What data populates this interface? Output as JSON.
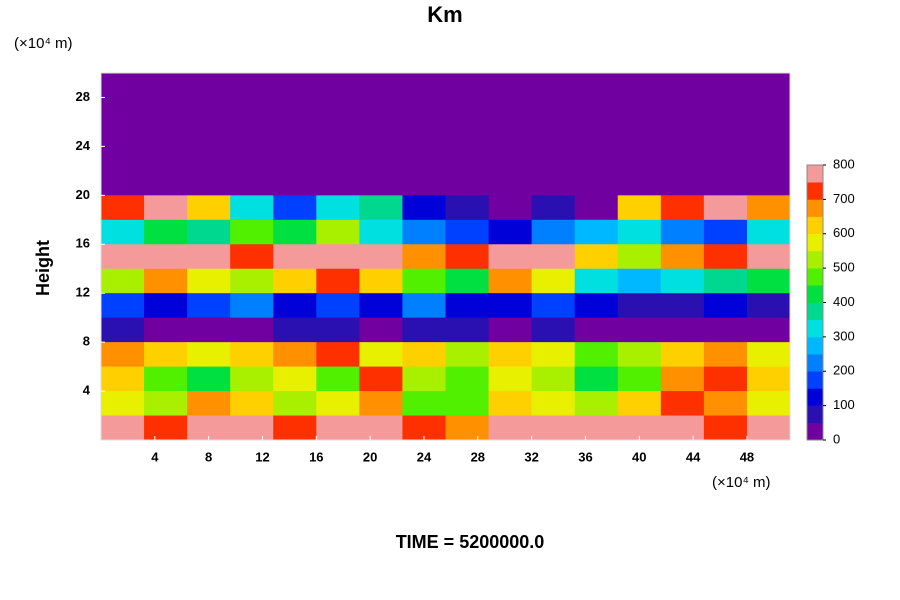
{
  "chart_data": {
    "type": "heatmap",
    "title": "Km",
    "y_unit": "(×10⁴ m)",
    "x_unit": "(×10⁴ m)",
    "ylabel": "Height",
    "footer": "TIME = 5200000.0",
    "xlim": [
      0,
      51.2
    ],
    "ylim": [
      0,
      30
    ],
    "xticks": [
      4,
      8,
      12,
      16,
      20,
      24,
      28,
      32,
      36,
      40,
      44,
      48
    ],
    "yticks": [
      4,
      8,
      12,
      16,
      20,
      24,
      28
    ],
    "z": [
      [
        0,
        0,
        0,
        0,
        0,
        0,
        0,
        0,
        0,
        0,
        0,
        0,
        0,
        0,
        0,
        0
      ],
      [
        0,
        0,
        0,
        0,
        0,
        0,
        0,
        0,
        0,
        0,
        0,
        0,
        0,
        0,
        0,
        0
      ],
      [
        0,
        0,
        0,
        0,
        0,
        0,
        0,
        0,
        0,
        0,
        0,
        0,
        0,
        0,
        0,
        0
      ],
      [
        0,
        0,
        0,
        0,
        0,
        0,
        0,
        0,
        0,
        0,
        0,
        0,
        0,
        0,
        0,
        0
      ],
      [
        0,
        0,
        0,
        0,
        0,
        0,
        0,
        0,
        0,
        0,
        0,
        0,
        0,
        0,
        0,
        0
      ],
      [
        700,
        750,
        600,
        300,
        150,
        300,
        350,
        100,
        50,
        0,
        50,
        0,
        600,
        700,
        750,
        650
      ],
      [
        300,
        400,
        350,
        450,
        400,
        500,
        300,
        200,
        150,
        100,
        200,
        250,
        300,
        200,
        150,
        300
      ],
      [
        750,
        800,
        750,
        700,
        800,
        800,
        800,
        650,
        700,
        750,
        800,
        600,
        500,
        650,
        700,
        750
      ],
      [
        500,
        650,
        550,
        500,
        600,
        700,
        600,
        450,
        400,
        650,
        550,
        300,
        250,
        300,
        350,
        400
      ],
      [
        150,
        100,
        150,
        200,
        100,
        150,
        100,
        200,
        100,
        100,
        150,
        100,
        50,
        50,
        100,
        50
      ],
      [
        50,
        0,
        0,
        0,
        50,
        50,
        0,
        50,
        50,
        0,
        50,
        0,
        0,
        0,
        0,
        0
      ],
      [
        650,
        600,
        550,
        600,
        650,
        700,
        550,
        600,
        500,
        600,
        550,
        450,
        500,
        600,
        650,
        550
      ],
      [
        600,
        450,
        400,
        500,
        550,
        450,
        700,
        500,
        450,
        550,
        500,
        400,
        450,
        650,
        700,
        600
      ],
      [
        550,
        500,
        650,
        600,
        500,
        550,
        650,
        450,
        450,
        600,
        550,
        500,
        600,
        700,
        650,
        550
      ],
      [
        750,
        700,
        750,
        800,
        700,
        750,
        800,
        700,
        650,
        750,
        800,
        800,
        750,
        800,
        700,
        750
      ]
    ],
    "colorbar": {
      "lim": [
        0,
        800
      ],
      "ticks": [
        0,
        100,
        200,
        300,
        400,
        500,
        600,
        700,
        800
      ],
      "colors": [
        "#7000a0",
        "#2a10b0",
        "#0000d8",
        "#0040ff",
        "#0080ff",
        "#00b8ff",
        "#00e0e0",
        "#00d890",
        "#00e040",
        "#50f000",
        "#a8f000",
        "#e8f000",
        "#ffd000",
        "#ff9000",
        "#ff3000",
        "#f59a9a"
      ]
    }
  }
}
